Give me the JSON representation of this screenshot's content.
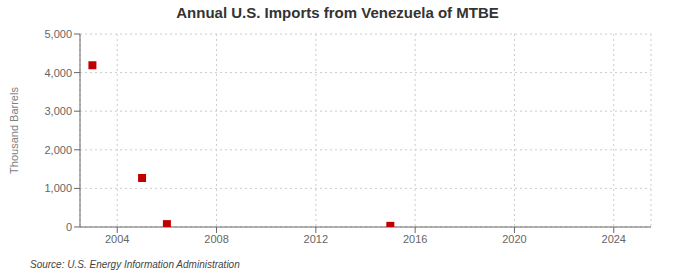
{
  "chart_data": {
    "type": "scatter",
    "title": "Annual U.S. Imports from Venezuela of MTBE",
    "ylabel": "Thousand Barrels",
    "annotation": "Source: U.S. Energy Information Administration",
    "x": [
      2003,
      2005,
      2006,
      2015
    ],
    "values": [
      4190,
      1270,
      75,
      30
    ],
    "color": "#c00000",
    "marker": "square",
    "xlim": [
      2002.5,
      2025.5
    ],
    "ylim": [
      0,
      5000
    ],
    "xticks": [
      2004,
      2008,
      2012,
      2016,
      2020,
      2024
    ],
    "yticks": [
      0,
      {
        "value": 1000,
        "label": "1,000"
      },
      {
        "value": 2000,
        "label": "2,000"
      },
      {
        "value": 3000,
        "label": "3,000"
      },
      {
        "value": 4000,
        "label": "4,000"
      },
      {
        "value": 5000,
        "label": "5,000"
      }
    ],
    "grid": true
  }
}
